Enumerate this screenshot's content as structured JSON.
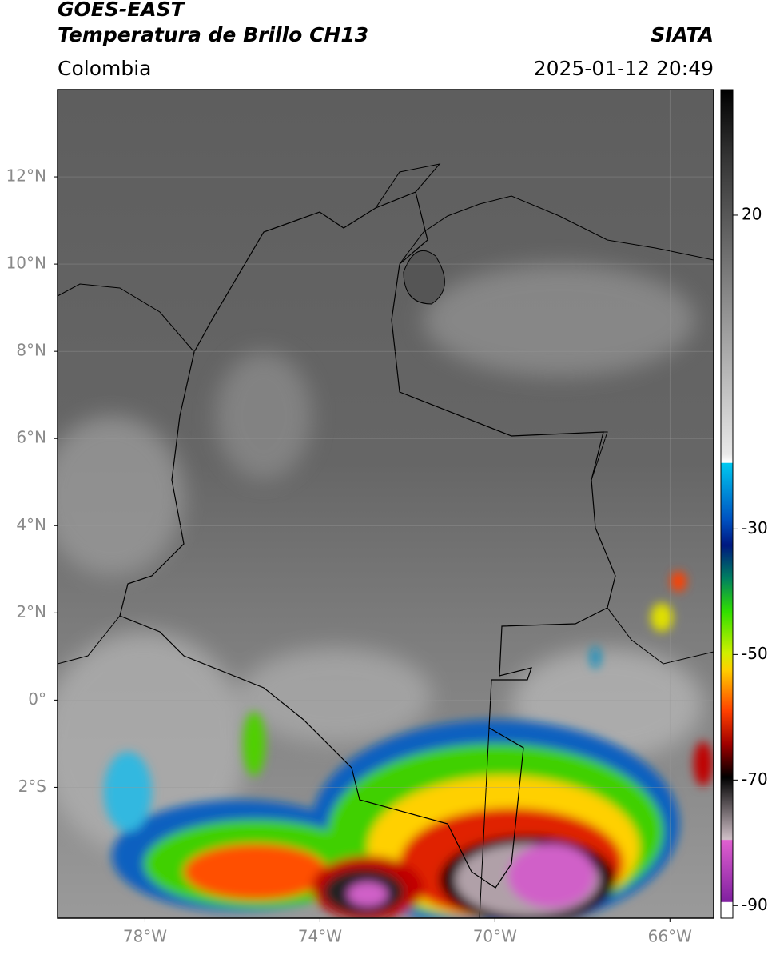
{
  "header": {
    "title": "GOES-EAST",
    "subtitle": "Temperatura de Brillo CH13",
    "region": "Colombia",
    "source": "SIATA",
    "timestamp": "2025-01-12 20:49"
  },
  "map": {
    "xlim": [
      -80,
      -65
    ],
    "ylim": [
      -5,
      14
    ],
    "grid": true,
    "xticks": [
      {
        "value": -78,
        "label": "78°W"
      },
      {
        "value": -74,
        "label": "74°W"
      },
      {
        "value": -70,
        "label": "70°W"
      },
      {
        "value": -66,
        "label": "66°W"
      }
    ],
    "yticks": [
      {
        "value": 12,
        "label": "12°N"
      },
      {
        "value": 10,
        "label": "10°N"
      },
      {
        "value": 8,
        "label": "8°N"
      },
      {
        "value": 6,
        "label": "6°N"
      },
      {
        "value": 4,
        "label": "4°N"
      },
      {
        "value": 2,
        "label": "2°N"
      },
      {
        "value": 0,
        "label": "0°"
      },
      {
        "value": -2,
        "label": "2°S"
      }
    ]
  },
  "colorbar": {
    "lim": [
      -92,
      40
    ],
    "ticks": [
      20,
      -30,
      -50,
      -70,
      -90
    ]
  }
}
